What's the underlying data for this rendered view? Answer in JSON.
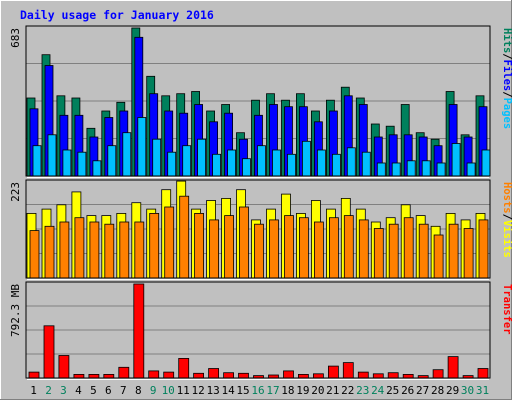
{
  "chart_data": {
    "type": "bar",
    "title": "Daily usage for January 2016",
    "categories": [
      "1",
      "2",
      "3",
      "4",
      "5",
      "6",
      "7",
      "8",
      "9",
      "10",
      "11",
      "12",
      "13",
      "14",
      "15",
      "16",
      "17",
      "18",
      "19",
      "20",
      "21",
      "22",
      "23",
      "24",
      "25",
      "26",
      "27",
      "28",
      "29",
      "30",
      "31"
    ],
    "weekend_days": [
      "2",
      "3",
      "9",
      "10",
      "16",
      "17",
      "23",
      "24",
      "30",
      "31"
    ],
    "colors": {
      "background": "#c0c0c0",
      "plot": "#c0c0c0",
      "hits": "#00805c",
      "files": "#0000ff",
      "pages": "#00c0ff",
      "hosts": "#ff8000",
      "visits": "#ffff00",
      "kbytes": "#ff0000",
      "title": "#0000ff",
      "weekday_label": "#000000",
      "weekend_label": "#00805c"
    },
    "panels": [
      {
        "name": "hits-files-pages",
        "scale_label": "683",
        "ymax": 683,
        "legend": [
          {
            "text": "Hits",
            "color": "#00805c"
          },
          {
            "text": "/",
            "color": "#000000"
          },
          {
            "text": "Files",
            "color": "#0000ff"
          },
          {
            "text": "/",
            "color": "#000000"
          },
          {
            "text": "Pages",
            "color": "#00c0ff"
          }
        ],
        "series": [
          {
            "name": "Hits",
            "color": "#00805c",
            "values": [
              360,
              560,
              370,
              360,
              220,
              300,
              340,
              683,
              460,
              370,
              380,
              390,
              300,
              330,
              200,
              350,
              380,
              350,
              380,
              300,
              350,
              410,
              360,
              240,
              230,
              330,
              200,
              170,
              390,
              190,
              370
            ]
          },
          {
            "name": "Files",
            "color": "#0000ff",
            "values": [
              310,
              510,
              280,
              280,
              180,
              270,
              300,
              640,
              380,
              300,
              290,
              330,
              250,
              290,
              170,
              280,
              330,
              320,
              320,
              250,
              300,
              370,
              330,
              180,
              190,
              190,
              180,
              140,
              330,
              180,
              320
            ]
          },
          {
            "name": "Pages",
            "color": "#00c0ff",
            "values": [
              140,
              190,
              120,
              110,
              70,
              140,
              200,
              270,
              170,
              110,
              140,
              170,
              100,
              120,
              80,
              140,
              120,
              100,
              160,
              120,
              100,
              130,
              110,
              60,
              60,
              70,
              70,
              60,
              150,
              60,
              120
            ]
          }
        ]
      },
      {
        "name": "hosts-visits",
        "scale_label": "223",
        "ymax": 223,
        "legend": [
          {
            "text": "Hosts",
            "color": "#ff8000"
          },
          {
            "text": "/",
            "color": "#000000"
          },
          {
            "text": "Visits",
            "color": "#ffff00"
          }
        ],
        "series": [
          {
            "name": "Visits",
            "color": "#ffff00",
            "values": [
              150,
              160,
              170,
              200,
              145,
              145,
              150,
              175,
              160,
              205,
              225,
              160,
              180,
              185,
              205,
              135,
              160,
              195,
              150,
              180,
              160,
              185,
              160,
              130,
              140,
              170,
              145,
              120,
              150,
              135,
              150
            ]
          },
          {
            "name": "Hosts",
            "color": "#ff8000",
            "values": [
              110,
              120,
              130,
              140,
              130,
              125,
              130,
              130,
              150,
              165,
              190,
              150,
              135,
              145,
              165,
              125,
              135,
              145,
              140,
              130,
              140,
              145,
              135,
              115,
              125,
              140,
              125,
              100,
              125,
              115,
              135
            ]
          }
        ]
      },
      {
        "name": "transfer",
        "scale_label": "792.3 MB",
        "ymax": 792.3,
        "unit": "MB",
        "legend": [
          {
            "text": "Transfer",
            "color": "#ff0000"
          }
        ],
        "series": [
          {
            "name": "Transfer",
            "color": "#ff0000",
            "values": [
              50,
              440,
              190,
              30,
              30,
              30,
              90,
              792.3,
              60,
              50,
              165,
              40,
              80,
              45,
              40,
              20,
              25,
              60,
              30,
              35,
              100,
              130,
              50,
              35,
              45,
              30,
              20,
              70,
              180,
              20,
              80
            ]
          }
        ]
      }
    ]
  }
}
